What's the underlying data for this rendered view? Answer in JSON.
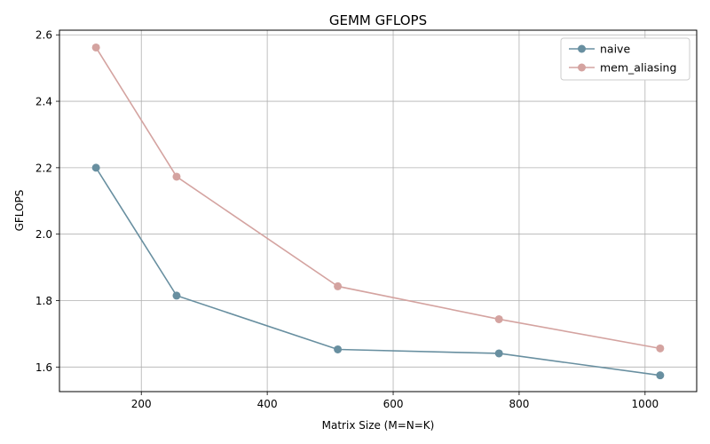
{
  "chart_data": {
    "type": "line",
    "title": "GEMM GFLOPS",
    "xlabel": "Matrix Size (M=N=K)",
    "ylabel": "GFLOPS",
    "x": [
      128,
      256,
      512,
      768,
      1024
    ],
    "xlim": [
      70,
      1082
    ],
    "ylim": [
      1.526,
      2.614
    ],
    "xticks": [
      200,
      400,
      600,
      800,
      1000
    ],
    "yticks": [
      1.6,
      1.8,
      2.0,
      2.2,
      2.4,
      2.6
    ],
    "xtick_labels": [
      "200",
      "400",
      "600",
      "800",
      "1000"
    ],
    "ytick_labels": [
      "1.6",
      "1.8",
      "2.0",
      "2.2",
      "2.4",
      "2.6"
    ],
    "grid": true,
    "legend_position": "top-right",
    "series": [
      {
        "name": "naive",
        "color": "#688fa0",
        "marker": "circle",
        "values": [
          2.2,
          1.815,
          1.653,
          1.641,
          1.575
        ]
      },
      {
        "name": "mem_aliasing",
        "color": "#d4a3a0",
        "marker": "circle",
        "values": [
          2.562,
          2.173,
          1.843,
          1.744,
          1.656
        ]
      }
    ]
  }
}
